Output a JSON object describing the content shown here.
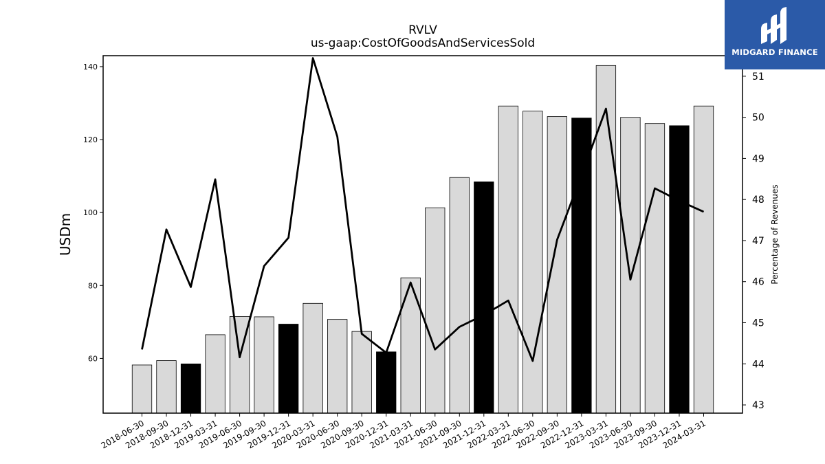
{
  "chart_data": {
    "type": "bar",
    "title": "RVLV",
    "subtitle": "us-gaap:CostOfGoodsAndServicesSold",
    "ylabel": "USDm",
    "y2label": "Percentage of Revenues",
    "ylim": [
      45,
      143
    ],
    "y2lim": [
      42.8,
      51.5
    ],
    "yticks": [
      60,
      80,
      100,
      120,
      140
    ],
    "y2ticks": [
      43,
      44,
      45,
      46,
      47,
      48,
      49,
      50,
      51
    ],
    "categories": [
      "2018-06-30",
      "2018-09-30",
      "2018-12-31",
      "2019-03-31",
      "2019-06-30",
      "2019-09-30",
      "2019-12-31",
      "2020-03-31",
      "2020-06-30",
      "2020-09-30",
      "2020-12-31",
      "2021-03-31",
      "2021-06-30",
      "2021-09-30",
      "2021-12-31",
      "2022-03-31",
      "2022-06-30",
      "2022-09-30",
      "2022-12-31",
      "2023-03-31",
      "2023-06-30",
      "2023-09-30",
      "2023-12-31",
      "2024-03-31"
    ],
    "series": [
      {
        "type": "bar",
        "values": [
          58.2,
          59.4,
          58.5,
          66.5,
          71.5,
          71.4,
          69.4,
          75.1,
          70.7,
          67.4,
          61.8,
          82.1,
          101.3,
          109.6,
          108.4,
          129.2,
          127.8,
          126.3,
          125.9,
          140.3,
          126.1,
          124.4,
          123.8,
          129.2
        ],
        "highlight": [
          false,
          false,
          true,
          false,
          false,
          false,
          true,
          false,
          false,
          false,
          true,
          false,
          false,
          false,
          true,
          false,
          false,
          false,
          true,
          false,
          false,
          false,
          true,
          false
        ],
        "color": "#d9d9d9",
        "highlight_color": "#000000"
      },
      {
        "type": "line",
        "axis": "right",
        "values": [
          44.35,
          47.27,
          45.87,
          48.49,
          44.16,
          46.38,
          47.07,
          51.44,
          49.53,
          44.73,
          44.27,
          45.98,
          44.35,
          44.9,
          45.19,
          45.54,
          44.07,
          47.02,
          48.59,
          50.21,
          46.05,
          48.27,
          47.97,
          47.7
        ],
        "color": "#000000"
      }
    ],
    "grid": false,
    "legend": "none"
  },
  "logo": {
    "text": "MIDGARD FINANCE",
    "color": "#2b5aa8"
  }
}
